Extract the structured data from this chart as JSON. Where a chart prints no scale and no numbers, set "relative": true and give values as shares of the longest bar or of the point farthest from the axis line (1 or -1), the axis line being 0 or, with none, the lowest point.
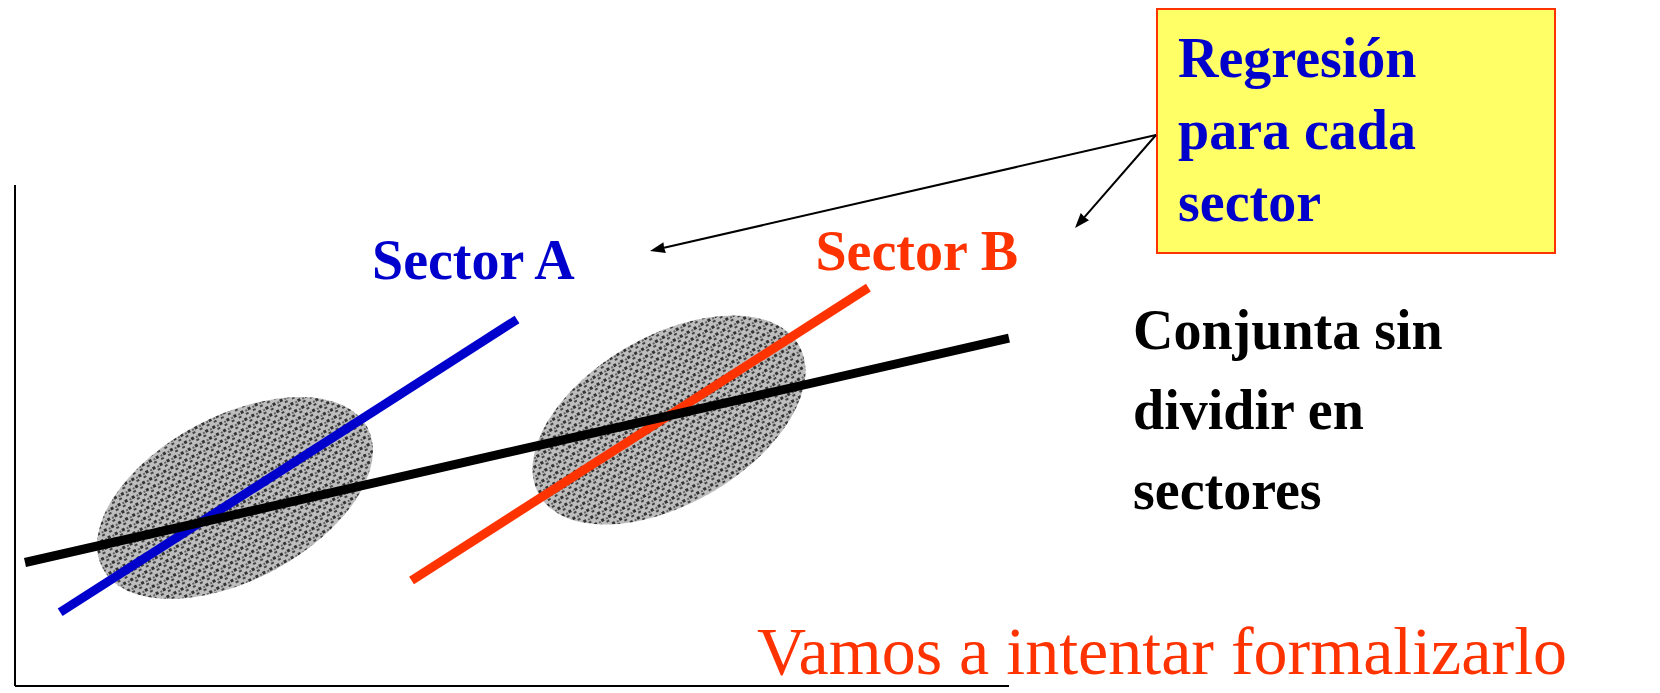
{
  "chart_data": {
    "type": "line",
    "relative": true,
    "legend": false,
    "categories": [
      null,
      null,
      null,
      null,
      null,
      null,
      null,
      null,
      null,
      null,
      null,
      null,
      null,
      null,
      null,
      null,
      null,
      null,
      null,
      null,
      null,
      null,
      null,
      null,
      null,
      null,
      null,
      null,
      null
    ],
    "series": [
      {
        "name": "Sector A",
        "color": "#0000cc",
        "values": [
          null,
          0.185,
          null,
          null,
          null,
          null,
          null,
          null,
          null,
          null,
          null,
          null,
          null,
          null,
          0.92,
          null,
          null,
          null,
          null,
          null,
          null,
          null,
          null,
          null,
          null,
          null,
          null,
          null,
          null
        ]
      },
      {
        "name": "Sector B",
        "color": "#ff3300",
        "values": [
          null,
          null,
          null,
          null,
          null,
          null,
          null,
          null,
          null,
          null,
          null,
          0.265,
          null,
          null,
          null,
          null,
          null,
          null,
          null,
          null,
          null,
          null,
          null,
          null,
          1,
          null,
          null,
          null,
          null
        ]
      },
      {
        "name": "Conjunta sin dividir en sectores",
        "color": "#000000",
        "values": [
          0.31,
          null,
          null,
          null,
          null,
          null,
          null,
          null,
          null,
          null,
          null,
          null,
          null,
          null,
          null,
          null,
          null,
          null,
          null,
          null,
          null,
          null,
          null,
          null,
          null,
          null,
          null,
          null,
          0.873
        ]
      }
    ],
    "annotations": [
      "Regresión para cada sector",
      "Vamos a intentar formalizarlo"
    ]
  }
}
